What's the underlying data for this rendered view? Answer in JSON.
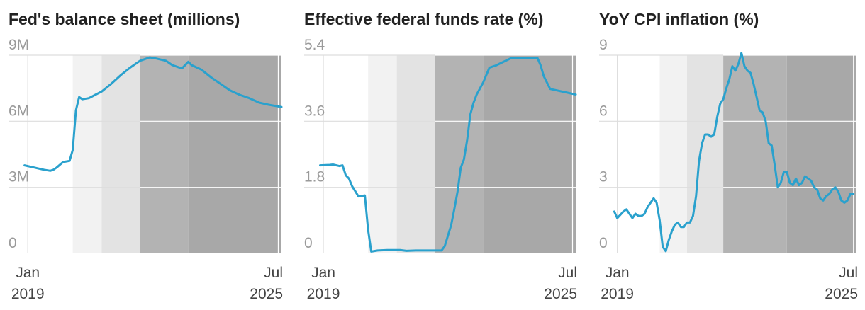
{
  "colors": {
    "line": "#2aa1cd",
    "band1": "#f2f2f2",
    "band2": "#e3e3e3",
    "band3": "#b3b3b3",
    "band4": "#a8a8a8",
    "grid": "#dddddd",
    "gridOnDark": "#ffffff"
  },
  "chart_data": [
    {
      "type": "line",
      "title": "Fed's balance sheet (millions)",
      "xlabel": "",
      "ylabel": "",
      "x_range": [
        "2018-07",
        "2025-08"
      ],
      "ylim": [
        0,
        9000000
      ],
      "y_ticks": [
        {
          "value": 0,
          "label": "0"
        },
        {
          "value": 3000000,
          "label": "3M"
        },
        {
          "value": 6000000,
          "label": "6M"
        },
        {
          "value": 9000000,
          "label": "9M"
        }
      ],
      "x_ticks": [
        {
          "date": "2019-01",
          "line1": "Jan",
          "line2": "2019"
        },
        {
          "date": "2025-07",
          "line1": "Jul",
          "line2": "2025"
        }
      ],
      "shaded_periods": [
        {
          "start": "2020-03",
          "end": "2020-12",
          "shade": "band1"
        },
        {
          "start": "2020-12",
          "end": "2021-12",
          "shade": "band2"
        },
        {
          "start": "2021-12",
          "end": "2023-03",
          "shade": "band3"
        },
        {
          "start": "2023-03",
          "end": "2025-08",
          "shade": "band4"
        }
      ],
      "series": [
        {
          "x": [
            "2018-12",
            "2019-03",
            "2019-06",
            "2019-08",
            "2019-09",
            "2019-10",
            "2019-12",
            "2020-02",
            "2020-03",
            "2020-04",
            "2020-05",
            "2020-06",
            "2020-08",
            "2020-10",
            "2020-12",
            "2021-03",
            "2021-06",
            "2021-09",
            "2021-12",
            "2022-03",
            "2022-05",
            "2022-08",
            "2022-10",
            "2023-01",
            "2023-03",
            "2023-04",
            "2023-07",
            "2023-10",
            "2024-01",
            "2024-04",
            "2024-07",
            "2024-10",
            "2025-01",
            "2025-04",
            "2025-08"
          ],
          "values": [
            4000000,
            3900000,
            3800000,
            3750000,
            3800000,
            3900000,
            4150000,
            4200000,
            4700000,
            6500000,
            7100000,
            7000000,
            7050000,
            7200000,
            7350000,
            7700000,
            8100000,
            8450000,
            8750000,
            8900000,
            8850000,
            8750000,
            8550000,
            8400000,
            8700000,
            8550000,
            8350000,
            8000000,
            7700000,
            7400000,
            7200000,
            7050000,
            6850000,
            6750000,
            6650000
          ]
        }
      ]
    },
    {
      "type": "line",
      "title": "Effective federal funds rate (%)",
      "xlabel": "",
      "ylabel": "",
      "x_range": [
        "2018-07",
        "2025-08"
      ],
      "ylim": [
        0,
        5.4
      ],
      "y_ticks": [
        {
          "value": 0,
          "label": "0"
        },
        {
          "value": 1.8,
          "label": "1.8"
        },
        {
          "value": 3.6,
          "label": "3.6"
        },
        {
          "value": 5.4,
          "label": "5.4"
        }
      ],
      "x_ticks": [
        {
          "date": "2019-01",
          "line1": "Jan",
          "line2": "2019"
        },
        {
          "date": "2025-07",
          "line1": "Jul",
          "line2": "2025"
        }
      ],
      "shaded_periods": [
        {
          "start": "2020-03",
          "end": "2020-12",
          "shade": "band1"
        },
        {
          "start": "2020-12",
          "end": "2021-12",
          "shade": "band2"
        },
        {
          "start": "2021-12",
          "end": "2023-03",
          "shade": "band3"
        },
        {
          "start": "2023-03",
          "end": "2025-08",
          "shade": "band4"
        }
      ],
      "series": [
        {
          "x": [
            "2018-12",
            "2019-03",
            "2019-04",
            "2019-06",
            "2019-07",
            "2019-08",
            "2019-09",
            "2019-10",
            "2019-12",
            "2020-02",
            "2020-03",
            "2020-04",
            "2020-06",
            "2020-09",
            "2021-01",
            "2021-03",
            "2021-06",
            "2021-09",
            "2021-12",
            "2022-02",
            "2022-03",
            "2022-05",
            "2022-06",
            "2022-07",
            "2022-08",
            "2022-09",
            "2022-10",
            "2022-11",
            "2022-12",
            "2023-01",
            "2023-03",
            "2023-05",
            "2023-07",
            "2023-12",
            "2024-06",
            "2024-08",
            "2024-09",
            "2024-10",
            "2024-12",
            "2025-08"
          ],
          "values": [
            2.4,
            2.41,
            2.42,
            2.38,
            2.4,
            2.13,
            2.04,
            1.83,
            1.55,
            1.58,
            0.65,
            0.05,
            0.08,
            0.09,
            0.09,
            0.07,
            0.08,
            0.08,
            0.08,
            0.08,
            0.2,
            0.77,
            1.21,
            1.68,
            2.33,
            2.56,
            3.08,
            3.78,
            4.1,
            4.33,
            4.65,
            5.06,
            5.12,
            5.33,
            5.33,
            5.33,
            5.13,
            4.83,
            4.48,
            4.33
          ]
        }
      ]
    },
    {
      "type": "line",
      "title": "YoY CPI inflation (%)",
      "xlabel": "",
      "ylabel": "",
      "x_range": [
        "2018-07",
        "2025-08"
      ],
      "ylim": [
        0,
        9
      ],
      "y_ticks": [
        {
          "value": 0,
          "label": "0"
        },
        {
          "value": 3,
          "label": "3"
        },
        {
          "value": 6,
          "label": "6"
        },
        {
          "value": 9,
          "label": "9"
        }
      ],
      "x_ticks": [
        {
          "date": "2019-01",
          "line1": "Jan",
          "line2": "2019"
        },
        {
          "date": "2025-07",
          "line1": "Jul",
          "line2": "2025"
        }
      ],
      "shaded_periods": [
        {
          "start": "2020-03",
          "end": "2020-12",
          "shade": "band1"
        },
        {
          "start": "2020-12",
          "end": "2021-12",
          "shade": "band2"
        },
        {
          "start": "2021-12",
          "end": "2023-09",
          "shade": "band3"
        },
        {
          "start": "2023-09",
          "end": "2025-08",
          "shade": "band4"
        }
      ],
      "series": [
        {
          "x": [
            "2018-12",
            "2019-01",
            "2019-03",
            "2019-04",
            "2019-05",
            "2019-06",
            "2019-07",
            "2019-08",
            "2019-09",
            "2019-10",
            "2019-11",
            "2019-12",
            "2020-01",
            "2020-02",
            "2020-03",
            "2020-04",
            "2020-05",
            "2020-06",
            "2020-07",
            "2020-08",
            "2020-09",
            "2020-10",
            "2020-11",
            "2020-12",
            "2021-01",
            "2021-02",
            "2021-03",
            "2021-04",
            "2021-05",
            "2021-06",
            "2021-07",
            "2021-08",
            "2021-09",
            "2021-10",
            "2021-11",
            "2021-12",
            "2022-01",
            "2022-02",
            "2022-03",
            "2022-04",
            "2022-05",
            "2022-06",
            "2022-07",
            "2022-08",
            "2022-09",
            "2022-10",
            "2022-11",
            "2022-12",
            "2023-01",
            "2023-02",
            "2023-03",
            "2023-04",
            "2023-05",
            "2023-06",
            "2023-07",
            "2023-08",
            "2023-09",
            "2023-10",
            "2023-11",
            "2023-12",
            "2024-01",
            "2024-02",
            "2024-03",
            "2024-04",
            "2024-05",
            "2024-06",
            "2024-07",
            "2024-08",
            "2024-09",
            "2024-10",
            "2024-11",
            "2024-12",
            "2025-01",
            "2025-02",
            "2025-03",
            "2025-04",
            "2025-05",
            "2025-06",
            "2025-07"
          ],
          "values": [
            1.9,
            1.6,
            1.9,
            2.0,
            1.8,
            1.6,
            1.8,
            1.7,
            1.7,
            1.8,
            2.1,
            2.3,
            2.5,
            2.3,
            1.5,
            0.3,
            0.1,
            0.6,
            1.0,
            1.3,
            1.4,
            1.2,
            1.2,
            1.4,
            1.4,
            1.7,
            2.6,
            4.2,
            5.0,
            5.4,
            5.4,
            5.3,
            5.4,
            6.2,
            6.8,
            7.0,
            7.5,
            7.9,
            8.5,
            8.3,
            8.6,
            9.1,
            8.5,
            8.3,
            8.2,
            7.7,
            7.1,
            6.5,
            6.4,
            6.0,
            5.0,
            4.9,
            4.0,
            3.0,
            3.2,
            3.7,
            3.7,
            3.2,
            3.1,
            3.4,
            3.1,
            3.2,
            3.5,
            3.4,
            3.3,
            3.0,
            2.9,
            2.5,
            2.4,
            2.6,
            2.7,
            2.9,
            3.0,
            2.8,
            2.4,
            2.3,
            2.4,
            2.7,
            2.7
          ]
        }
      ]
    }
  ]
}
